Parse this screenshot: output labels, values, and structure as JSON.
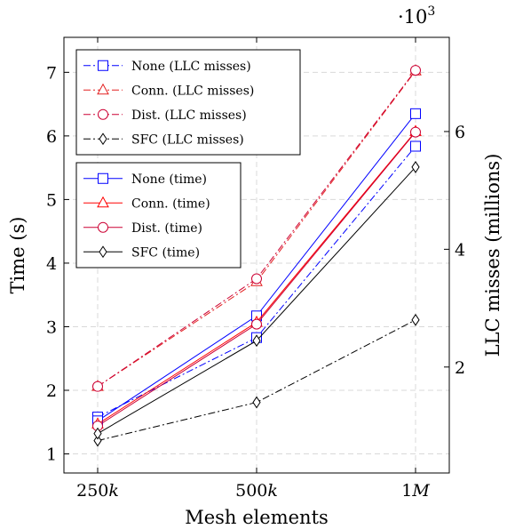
{
  "chart_data": {
    "type": "line",
    "categories": [
      "250k",
      "500k",
      "1M"
    ],
    "category_labels": [
      {
        "num": "250",
        "suffix": "k"
      },
      {
        "num": "500",
        "suffix": "k"
      },
      {
        "num": "1",
        "suffix": "M"
      }
    ],
    "xlabel": "Mesh elements",
    "ylabel_left": "Time (s)",
    "ylabel_right": "LLC misses (millions)",
    "right_exponent": "·10",
    "right_exponent_power": "3",
    "ylim_left": [
      0.7,
      7.55
    ],
    "yticks_left": [
      1,
      2,
      3,
      4,
      5,
      6,
      7
    ],
    "ylim_right": [
      0.2,
      7.6
    ],
    "yticks_right": [
      2,
      4,
      6
    ],
    "grid": true,
    "legend_positions": [
      "top-left",
      "upper-left (below first)"
    ],
    "time_series": [
      {
        "name": "None (time)",
        "color": "#0000ff",
        "marker": "square",
        "values": [
          1.52,
          3.17,
          6.35
        ]
      },
      {
        "name": "Conn. (time)",
        "color": "#ff0000",
        "marker": "triangle",
        "values": [
          1.47,
          3.07,
          6.07
        ]
      },
      {
        "name": "Dist. (time)",
        "color": "#cc0033",
        "marker": "circle",
        "values": [
          1.44,
          3.04,
          6.06
        ]
      },
      {
        "name": "SFC (time)",
        "color": "#000000",
        "marker": "diamond",
        "values": [
          1.32,
          2.78,
          5.51
        ]
      }
    ],
    "llc_series": [
      {
        "name": "None (LLC misses)",
        "color": "#0000ff",
        "marker": "square",
        "values": [
          1.15,
          2.5,
          5.75
        ]
      },
      {
        "name": "Conn. (LLC misses)",
        "color": "#e32020",
        "marker": "triangle",
        "values": [
          1.67,
          3.45,
          7.03
        ]
      },
      {
        "name": "Dist. (LLC misses)",
        "color": "#cc0033",
        "marker": "circle",
        "values": [
          1.67,
          3.5,
          7.04
        ]
      },
      {
        "name": "SFC (LLC misses)",
        "color": "#000000",
        "marker": "diamond",
        "values": [
          0.75,
          1.4,
          2.8
        ]
      }
    ]
  }
}
